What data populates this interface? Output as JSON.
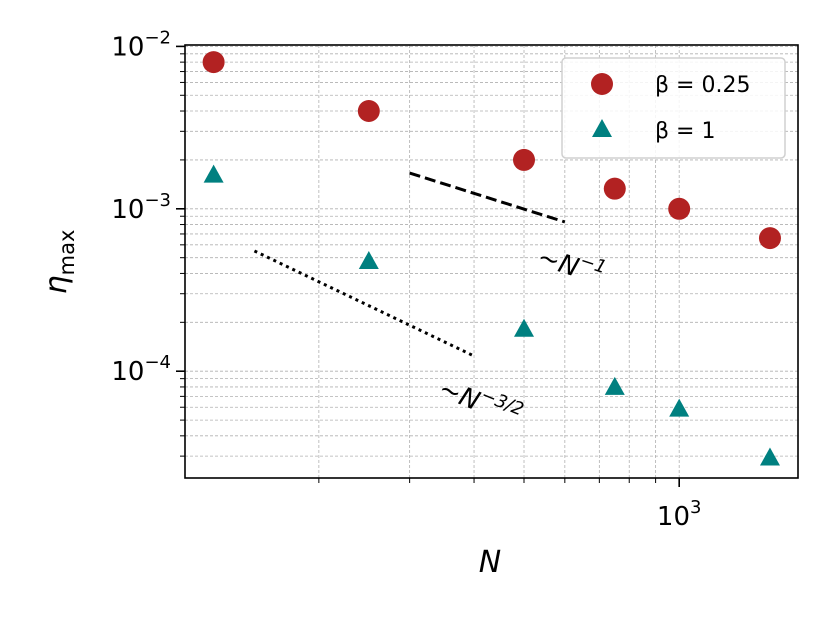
{
  "chart_data": {
    "type": "scatter",
    "xlabel": "N",
    "ylabel": {
      "text": "η",
      "subscript": "max"
    },
    "log_x": true,
    "log_y": true,
    "grid": true,
    "xlim": [
      110,
      1700
    ],
    "ylim": [
      2.2e-05,
      0.0102
    ],
    "xticks": [
      {
        "value": 1000,
        "label": "10",
        "exponent": "3"
      }
    ],
    "xminorticks": [
      200,
      300,
      400,
      500,
      600,
      700,
      800,
      900
    ],
    "yticks": [
      {
        "value": 0.0001,
        "label": "10",
        "exponent": "−4"
      },
      {
        "value": 0.001,
        "label": "10",
        "exponent": "−3"
      },
      {
        "value": 0.01,
        "label": "10",
        "exponent": "−2"
      }
    ],
    "yminorticks": [
      3e-05,
      4e-05,
      5e-05,
      6e-05,
      7e-05,
      8e-05,
      9e-05,
      0.0002,
      0.0003,
      0.0004,
      0.0005,
      0.0006,
      0.0007,
      0.0008,
      0.0009,
      0.002,
      0.003,
      0.004,
      0.005,
      0.006,
      0.007,
      0.008,
      0.009
    ],
    "legend": "upper right",
    "series": [
      {
        "name": "β = 0.25",
        "color": "#b22222",
        "marker": "circle",
        "x": [
          125,
          250,
          500,
          750,
          1000,
          1500
        ],
        "values": [
          0.008,
          0.004,
          0.002,
          0.00133,
          0.001,
          0.00066
        ]
      },
      {
        "name": "β = 1",
        "color": "#008080",
        "marker": "triangle",
        "x": [
          125,
          250,
          500,
          750,
          1000,
          1500
        ],
        "values": [
          0.0016,
          0.00047,
          0.00018,
          7.9e-05,
          5.8e-05,
          2.9e-05
        ]
      }
    ],
    "reference_lines": [
      {
        "style": "dashed",
        "x": [
          300,
          600
        ],
        "values": [
          0.00166,
          0.00083
        ]
      },
      {
        "style": "dotted",
        "x": [
          150,
          400
        ],
        "values": [
          0.00055,
          0.000124
        ]
      }
    ],
    "annotations": [
      {
        "text": "~N",
        "exponent": "−1"
      },
      {
        "text": "~N",
        "exponent": "−3/2"
      }
    ]
  }
}
